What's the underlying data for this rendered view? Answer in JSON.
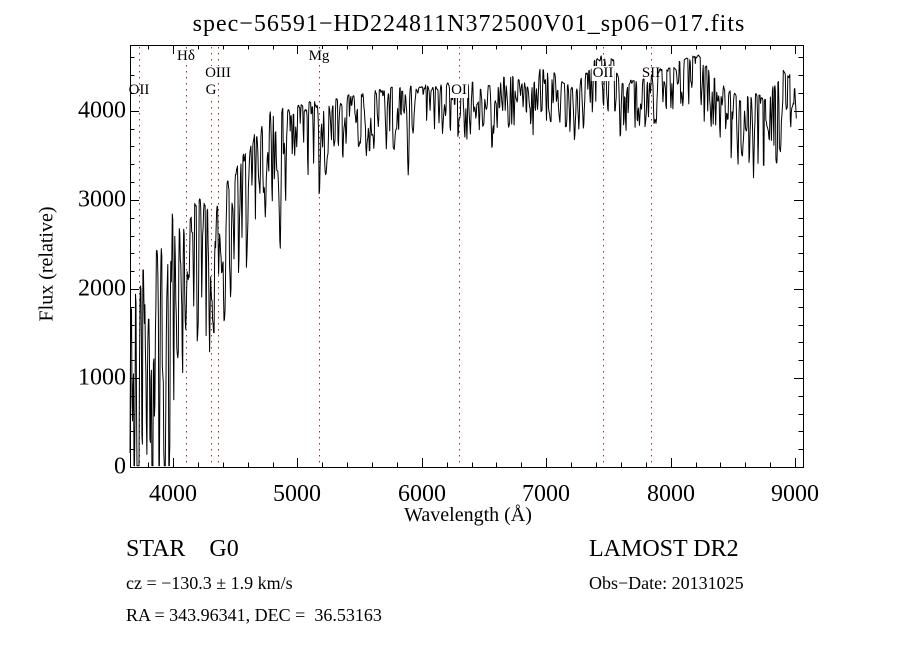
{
  "title": "spec−56591−HD224811N372500V01_sp06−017.fits",
  "annotations": {
    "class_line": "STAR    G0",
    "survey": "LAMOST DR2",
    "cz": "cz = −130.3 ± 1.9 km/s",
    "obs_date": "Obs−Date: 20131025",
    "ra_dec": "RA = 343.96341, DEC =  36.53163"
  },
  "chart_data": {
    "type": "line",
    "title": "spec−56591−HD224811N372500V01_sp06−017.fits",
    "xlabel": "Wavelength (Å)",
    "ylabel": "Flux (relative)",
    "xlim": [
      3654,
      9064
    ],
    "ylim": [
      0,
      4740
    ],
    "xticks": [
      4000,
      5000,
      6000,
      7000,
      8000,
      9000
    ],
    "yticks": [
      0,
      1000,
      2000,
      3000,
      4000
    ],
    "x_minor_step": 200,
    "y_minor_step": 200,
    "grid": false,
    "legend": "none",
    "line_color": "#000000",
    "marker_color": "#9b3226",
    "line_markers": [
      {
        "label": "OII",
        "wavelength": 3727,
        "row": 3,
        "bg": false
      },
      {
        "label": "Hδ",
        "wavelength": 4102,
        "row": 1,
        "bg": true
      },
      {
        "label": "OIII",
        "wavelength": 4363,
        "row": 2,
        "bg": true
      },
      {
        "label": "G",
        "wavelength": 4305,
        "row": 3,
        "bg": true
      },
      {
        "label": "Mg",
        "wavelength": 5175,
        "row": 1,
        "bg": true
      },
      {
        "label": "OI",
        "wavelength": 6300,
        "row": 3,
        "bg": true
      },
      {
        "label": "OII",
        "wavelength": 7455,
        "row": 2,
        "bg": true
      },
      {
        "label": "SII",
        "wavelength": 7840,
        "row": 2,
        "bg": false
      }
    ],
    "spectrum": {
      "x_start": 3654,
      "x_end": 9010,
      "x_step": 4,
      "continuum": [
        [
          3654,
          1600
        ],
        [
          3672,
          2000
        ],
        [
          3700,
          2250
        ],
        [
          3730,
          2280
        ],
        [
          3765,
          2320
        ],
        [
          3810,
          2380
        ],
        [
          3860,
          2540
        ],
        [
          3910,
          2750
        ],
        [
          3960,
          2860
        ],
        [
          4010,
          2910
        ],
        [
          4060,
          2960
        ],
        [
          4120,
          2990
        ],
        [
          4200,
          3120
        ],
        [
          4260,
          3120
        ],
        [
          4310,
          3060
        ],
        [
          4370,
          3090
        ],
        [
          4420,
          3240
        ],
        [
          4500,
          3430
        ],
        [
          4600,
          3700
        ],
        [
          4700,
          3930
        ],
        [
          4800,
          4070
        ],
        [
          4900,
          4060
        ],
        [
          5000,
          4120
        ],
        [
          5100,
          4150
        ],
        [
          5200,
          4130
        ],
        [
          5300,
          4160
        ],
        [
          5450,
          4210
        ],
        [
          5600,
          4260
        ],
        [
          5750,
          4290
        ],
        [
          5900,
          4300
        ],
        [
          6050,
          4310
        ],
        [
          6200,
          4340
        ],
        [
          6300,
          4300
        ],
        [
          6450,
          4360
        ],
        [
          6600,
          4400
        ],
        [
          6750,
          4440
        ],
        [
          6870,
          4280
        ],
        [
          6950,
          4520
        ],
        [
          7050,
          4480
        ],
        [
          7180,
          4350
        ],
        [
          7280,
          4380
        ],
        [
          7360,
          4560
        ],
        [
          7450,
          4680
        ],
        [
          7540,
          4600
        ],
        [
          7600,
          4380
        ],
        [
          7660,
          4340
        ],
        [
          7740,
          4390
        ],
        [
          7820,
          4430
        ],
        [
          7900,
          4470
        ],
        [
          8000,
          4540
        ],
        [
          8100,
          4610
        ],
        [
          8200,
          4670
        ],
        [
          8280,
          4560
        ],
        [
          8360,
          4420
        ],
        [
          8440,
          4280
        ],
        [
          8520,
          4230
        ],
        [
          8600,
          4210
        ],
        [
          8680,
          4200
        ],
        [
          8760,
          4290
        ],
        [
          8850,
          4400
        ],
        [
          8930,
          4490
        ],
        [
          8995,
          4540
        ],
        [
          9010,
          4060
        ]
      ],
      "absorption_lines": [
        [
          3712,
          1500,
          4
        ],
        [
          3727,
          700,
          5
        ],
        [
          3750,
          420,
          4
        ],
        [
          3771,
          520,
          4
        ],
        [
          3798,
          800,
          5
        ],
        [
          3835,
          1300,
          5
        ],
        [
          3889,
          1500,
          6
        ],
        [
          3933,
          2350,
          6
        ],
        [
          3970,
          2250,
          6
        ],
        [
          4102,
          760,
          6
        ],
        [
          4227,
          240,
          4
        ],
        [
          4305,
          420,
          7
        ],
        [
          4340,
          500,
          5
        ],
        [
          4383,
          280,
          4
        ],
        [
          4861,
          810,
          5
        ],
        [
          5175,
          450,
          6
        ],
        [
          5270,
          200,
          6
        ],
        [
          5890,
          580,
          5
        ],
        [
          6563,
          560,
          5
        ],
        [
          6870,
          200,
          8
        ],
        [
          7230,
          120,
          14
        ],
        [
          7594,
          110,
          8
        ],
        [
          8498,
          280,
          5
        ],
        [
          8542,
          560,
          5
        ],
        [
          8662,
          400,
          5
        ],
        [
          8750,
          140,
          5
        ]
      ],
      "noise_profile": [
        [
          3654,
          250
        ],
        [
          3760,
          200
        ],
        [
          3900,
          180
        ],
        [
          4100,
          140
        ],
        [
          4400,
          115
        ],
        [
          4800,
          85
        ],
        [
          5300,
          60
        ],
        [
          6000,
          48
        ],
        [
          6800,
          45
        ],
        [
          7500,
          48
        ],
        [
          8200,
          52
        ],
        [
          8700,
          65
        ],
        [
          9064,
          85
        ]
      ]
    }
  }
}
